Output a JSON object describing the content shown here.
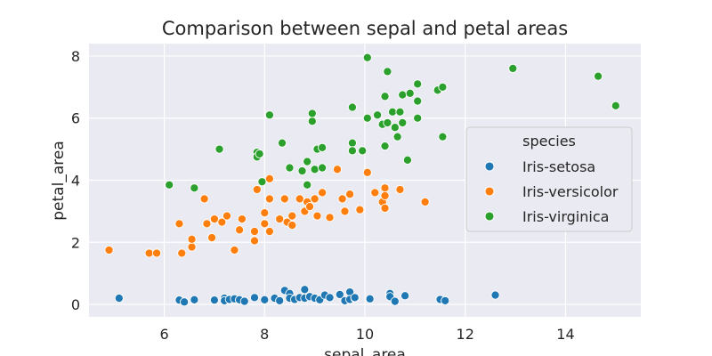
{
  "chart_data": {
    "type": "scatter",
    "title": "Comparison between sepal and petal areas",
    "xlabel": "sepal_area",
    "ylabel": "petal_area",
    "xlim": [
      4.5,
      15.5
    ],
    "ylim": [
      -0.4,
      8.4
    ],
    "xticks": [
      6,
      8,
      10,
      12,
      14
    ],
    "yticks": [
      0,
      2,
      4,
      6,
      8
    ],
    "grid": true,
    "legend": {
      "title": "species",
      "placement": "center-right"
    },
    "series": [
      {
        "name": "Iris-setosa",
        "color": "#1f77b4",
        "points": [
          [
            5.1,
            0.2
          ],
          [
            6.3,
            0.14
          ],
          [
            6.4,
            0.08
          ],
          [
            6.6,
            0.15
          ],
          [
            7.0,
            0.14
          ],
          [
            7.2,
            0.2
          ],
          [
            7.2,
            0.12
          ],
          [
            7.3,
            0.16
          ],
          [
            7.4,
            0.18
          ],
          [
            7.5,
            0.15
          ],
          [
            7.6,
            0.1
          ],
          [
            7.8,
            0.22
          ],
          [
            8.0,
            0.15
          ],
          [
            8.2,
            0.2
          ],
          [
            8.3,
            0.12
          ],
          [
            8.4,
            0.45
          ],
          [
            8.5,
            0.35
          ],
          [
            8.5,
            0.2
          ],
          [
            8.6,
            0.16
          ],
          [
            8.7,
            0.22
          ],
          [
            8.8,
            0.48
          ],
          [
            8.8,
            0.2
          ],
          [
            8.9,
            0.25
          ],
          [
            9.0,
            0.2
          ],
          [
            9.1,
            0.15
          ],
          [
            9.2,
            0.3
          ],
          [
            9.3,
            0.22
          ],
          [
            9.5,
            0.32
          ],
          [
            9.6,
            0.12
          ],
          [
            9.7,
            0.4
          ],
          [
            9.7,
            0.16
          ],
          [
            9.8,
            0.2
          ],
          [
            9.8,
            0.22
          ],
          [
            10.1,
            0.18
          ],
          [
            10.5,
            0.35
          ],
          [
            10.5,
            0.25
          ],
          [
            10.6,
            0.1
          ],
          [
            10.8,
            0.28
          ],
          [
            11.5,
            0.16
          ],
          [
            11.6,
            0.12
          ],
          [
            12.6,
            0.3
          ]
        ]
      },
      {
        "name": "Iris-versicolor",
        "color": "#ff7f0e",
        "points": [
          [
            4.9,
            1.75
          ],
          [
            5.7,
            1.65
          ],
          [
            5.85,
            1.65
          ],
          [
            6.3,
            2.6
          ],
          [
            6.35,
            1.65
          ],
          [
            6.55,
            1.85
          ],
          [
            6.55,
            2.1
          ],
          [
            6.8,
            3.4
          ],
          [
            6.85,
            2.6
          ],
          [
            6.95,
            2.15
          ],
          [
            7.0,
            2.75
          ],
          [
            7.15,
            2.65
          ],
          [
            7.25,
            2.85
          ],
          [
            7.4,
            1.75
          ],
          [
            7.5,
            2.4
          ],
          [
            7.55,
            2.75
          ],
          [
            7.8,
            2.35
          ],
          [
            7.8,
            2.05
          ],
          [
            7.85,
            3.7
          ],
          [
            8.0,
            2.95
          ],
          [
            8.0,
            2.6
          ],
          [
            8.1,
            3.4
          ],
          [
            8.1,
            4.05
          ],
          [
            8.1,
            2.35
          ],
          [
            8.3,
            2.75
          ],
          [
            8.4,
            3.4
          ],
          [
            8.45,
            2.65
          ],
          [
            8.55,
            2.55
          ],
          [
            8.55,
            2.85
          ],
          [
            8.7,
            3.4
          ],
          [
            8.8,
            3.0
          ],
          [
            8.85,
            3.3
          ],
          [
            8.9,
            3.15
          ],
          [
            9.0,
            3.4
          ],
          [
            9.05,
            2.85
          ],
          [
            9.15,
            3.6
          ],
          [
            9.3,
            2.8
          ],
          [
            9.45,
            4.35
          ],
          [
            9.55,
            3.4
          ],
          [
            9.6,
            3.0
          ],
          [
            9.7,
            3.55
          ],
          [
            9.9,
            3.05
          ],
          [
            10.05,
            4.25
          ],
          [
            10.2,
            3.6
          ],
          [
            10.35,
            3.3
          ],
          [
            10.4,
            3.75
          ],
          [
            10.4,
            3.5
          ],
          [
            10.4,
            3.1
          ],
          [
            10.7,
            3.7
          ],
          [
            11.2,
            3.3
          ]
        ]
      },
      {
        "name": "Iris-virginica",
        "color": "#2ca02c",
        "points": [
          [
            6.1,
            3.85
          ],
          [
            6.6,
            3.75
          ],
          [
            7.1,
            5.0
          ],
          [
            7.85,
            4.9
          ],
          [
            7.85,
            4.75
          ],
          [
            7.9,
            4.85
          ],
          [
            7.95,
            3.95
          ],
          [
            8.1,
            6.1
          ],
          [
            8.35,
            5.2
          ],
          [
            8.5,
            4.4
          ],
          [
            8.75,
            4.3
          ],
          [
            8.85,
            3.85
          ],
          [
            8.85,
            4.6
          ],
          [
            8.95,
            5.9
          ],
          [
            8.95,
            6.15
          ],
          [
            9.0,
            4.35
          ],
          [
            9.05,
            5.0
          ],
          [
            9.15,
            4.4
          ],
          [
            9.15,
            5.05
          ],
          [
            9.75,
            6.35
          ],
          [
            9.75,
            5.2
          ],
          [
            9.75,
            4.95
          ],
          [
            9.95,
            4.95
          ],
          [
            10.05,
            7.95
          ],
          [
            10.05,
            6.0
          ],
          [
            10.25,
            6.1
          ],
          [
            10.35,
            5.8
          ],
          [
            10.4,
            5.1
          ],
          [
            10.4,
            6.7
          ],
          [
            10.45,
            7.5
          ],
          [
            10.45,
            5.85
          ],
          [
            10.55,
            6.2
          ],
          [
            10.6,
            5.7
          ],
          [
            10.65,
            5.4
          ],
          [
            10.7,
            6.2
          ],
          [
            10.75,
            5.85
          ],
          [
            10.75,
            6.75
          ],
          [
            10.85,
            4.65
          ],
          [
            10.9,
            6.8
          ],
          [
            11.05,
            7.1
          ],
          [
            11.05,
            6.55
          ],
          [
            11.05,
            6.0
          ],
          [
            11.45,
            6.9
          ],
          [
            11.55,
            7.0
          ],
          [
            11.55,
            5.4
          ],
          [
            12.95,
            7.6
          ],
          [
            14.65,
            7.35
          ],
          [
            15.0,
            6.4
          ]
        ]
      }
    ]
  }
}
